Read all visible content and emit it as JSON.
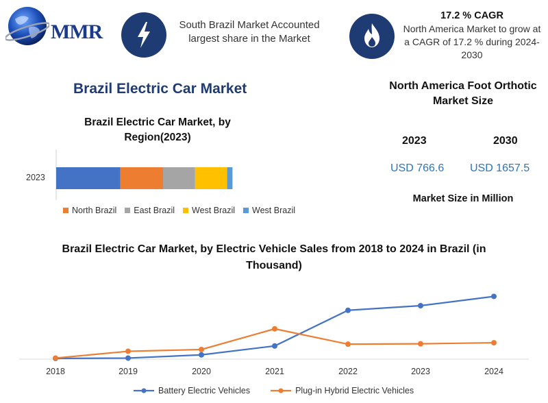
{
  "logo": {
    "text": "MMR"
  },
  "info_left": {
    "text": "South Brazil Market Accounted largest share in the Market",
    "icon": "lightning-icon"
  },
  "info_right": {
    "headline": "17.2 % CAGR",
    "text": "North America Market to grow at a CAGR of 17.2 % during 2024-2030",
    "icon": "flame-icon"
  },
  "main_title": "Brazil Electric Car Market",
  "market_size": {
    "title": "North America Foot Orthotic Market Size",
    "year_a": "2023",
    "year_b": "2030",
    "value_a": "USD 766.6",
    "value_b": "USD 1657.5",
    "caption": "Market Size in Million"
  },
  "colors": {
    "navy": "#1f3b73",
    "blue": "#4472c4",
    "orange": "#ed7d31",
    "gray": "#a5a5a5",
    "yellow": "#ffc000",
    "lightblue": "#5b9bd5"
  },
  "chart_data": [
    {
      "type": "bar",
      "orientation": "horizontal-stacked",
      "title": "Brazil Electric Car Market, by Region(2023)",
      "categories": [
        "2023"
      ],
      "series": [
        {
          "name": "",
          "color": "#4472c4",
          "values": [
            36
          ]
        },
        {
          "name": "North Brazil",
          "color": "#ed7d31",
          "values": [
            24
          ]
        },
        {
          "name": "East Brazil",
          "color": "#a5a5a5",
          "values": [
            18
          ]
        },
        {
          "name": "West Brazil",
          "color": "#ffc000",
          "values": [
            18
          ]
        },
        {
          "name": "West Brazil",
          "color": "#5b9bd5",
          "values": [
            3
          ]
        }
      ],
      "legend": "bottom"
    },
    {
      "type": "line",
      "title": "Brazil Electric Car Market, by Electric Vehicle Sales from 2018 to 2024 in Brazil (in Thousand)",
      "x": [
        "2018",
        "2019",
        "2020",
        "2021",
        "2022",
        "2023",
        "2024"
      ],
      "series": [
        {
          "name": "Battery Electric Vehicles",
          "color": "#4472c4",
          "values": [
            0.2,
            0.3,
            1.2,
            3.7,
            13.7,
            15.0,
            17.6
          ]
        },
        {
          "name": "Plug-in Hybrid Electric Vehicles",
          "color": "#ed7d31",
          "values": [
            0.3,
            2.2,
            2.7,
            8.5,
            4.2,
            4.3,
            4.6
          ]
        }
      ],
      "ylim": [
        0,
        20
      ],
      "grid": false,
      "legend": "bottom"
    }
  ]
}
